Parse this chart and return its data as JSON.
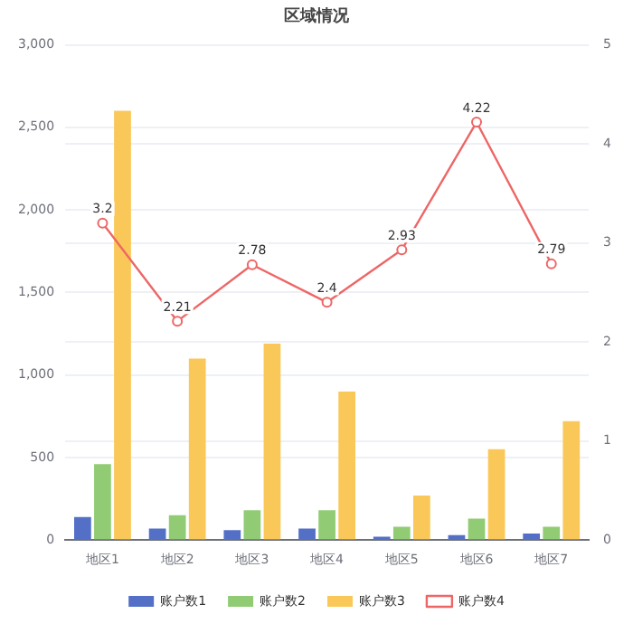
{
  "chart_data": {
    "type": "bar",
    "title": "区域情况",
    "categories": [
      "地区1",
      "地区2",
      "地区3",
      "地区4",
      "地区5",
      "地区6",
      "地区7"
    ],
    "series": [
      {
        "name": "账户数1",
        "color": "#5470c6",
        "values": [
          140,
          70,
          60,
          70,
          20,
          30,
          40
        ]
      },
      {
        "name": "账户数2",
        "color": "#91cc75",
        "values": [
          460,
          150,
          180,
          180,
          80,
          130,
          80
        ]
      },
      {
        "name": "账户数3",
        "color": "#fac858",
        "values": [
          2600,
          1100,
          1190,
          900,
          270,
          550,
          720
        ]
      },
      {
        "name": "账户数4",
        "color": "#ee6666",
        "type": "line",
        "axis": "y2",
        "marker": "circle",
        "values": [
          3.2,
          2.21,
          2.78,
          2.4,
          2.93,
          4.22,
          2.79
        ],
        "value_labels": [
          "3.2",
          "2.21",
          "2.78",
          "2.4",
          "2.93",
          "4.22",
          "2.79"
        ]
      }
    ],
    "ylim": [
      0,
      3000
    ],
    "yticks": [
      0,
      500,
      {
        "value": 1000,
        "label": "1,000"
      },
      {
        "value": 1500,
        "label": "1,500"
      },
      {
        "value": 2000,
        "label": "2,000"
      },
      {
        "value": 2500,
        "label": "2,500"
      },
      {
        "value": 3000,
        "label": "3,000"
      }
    ],
    "y2lim": [
      0,
      5
    ],
    "y2ticks": [
      0,
      1,
      2,
      3,
      4,
      5
    ],
    "grid": "y",
    "legend": "bottom"
  }
}
